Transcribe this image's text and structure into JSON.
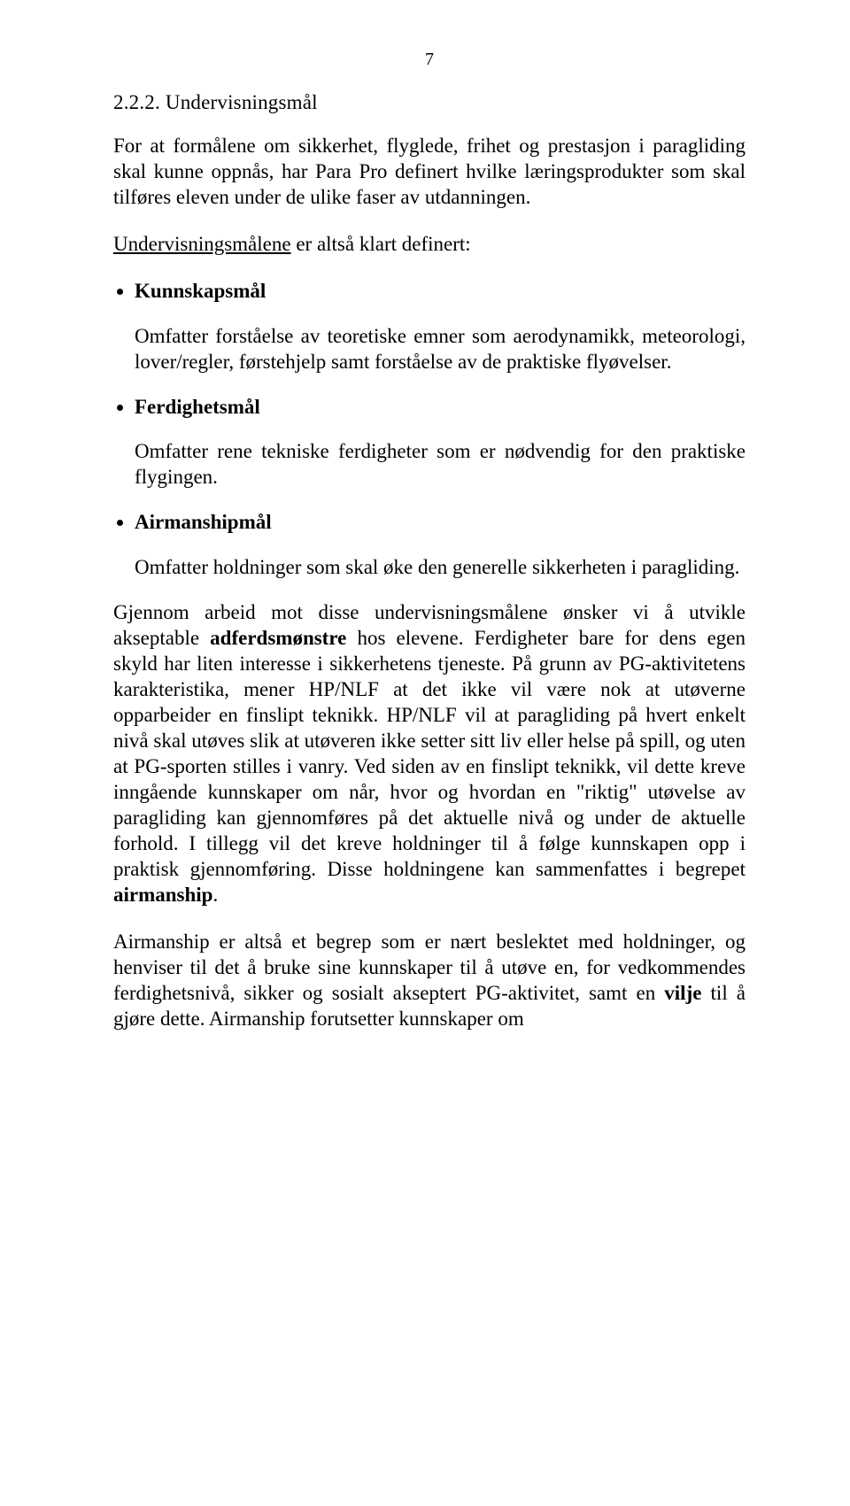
{
  "page_number": "7",
  "heading": "2.2.2. Undervisningsmål",
  "intro": "For at formålene om sikkerhet, flyglede, frihet og prestasjon i paragliding skal kunne oppnås, har Para Pro definert hvilke læringsprodukter som skal tilføres eleven under de ulike faser av utdanningen.",
  "defined_lead_underlined": "Undervisningsmålene",
  "defined_lead_rest": " er altså klart definert:",
  "goals": [
    {
      "title": "Kunnskapsmål",
      "desc": "Omfatter forståelse av teoretiske emner som aerodynamikk, meteorologi, lover/regler, førstehjelp samt forståelse av de praktiske flyøvelser."
    },
    {
      "title": "Ferdighetsmål",
      "desc": "Omfatter rene tekniske ferdigheter som er nødvendig for den praktiske flygingen."
    },
    {
      "title": "Airmanshipmål",
      "desc": "Omfatter holdninger som skal øke den generelle sikkerheten i paragliding."
    }
  ],
  "para2_pre": "Gjennom arbeid mot disse undervisningsmålene ønsker vi å utvikle akseptable ",
  "para2_bold1": "adferdsmønstre",
  "para2_mid": " hos elevene. Ferdigheter bare for dens egen skyld har liten interesse i sikkerhetens tjeneste. På grunn av PG-aktivitetens karakteristika, mener HP/NLF at det ikke vil være nok at utøverne opparbeider en finslipt teknikk. HP/NLF vil at paragliding på hvert enkelt nivå skal utøves slik at utøveren ikke setter sitt liv eller helse på spill, og uten at PG-sporten stilles i vanry. Ved siden av en finslipt teknikk, vil dette kreve inngående kunnskaper om når, hvor og hvordan en \"riktig\" utøvelse av paragliding kan gjennomføres på det aktuelle nivå og under de aktuelle forhold. I tillegg vil det kreve holdninger til å følge kunnskapen opp i praktisk gjennomføring. Disse holdningene kan sammenfattes i begrepet ",
  "para2_bold2": "airmanship",
  "para2_post": ".",
  "para3_pre": "Airmanship er altså et begrep som er nært beslektet med holdninger, og henviser til det å bruke sine kunnskaper til å utøve en, for vedkommendes ferdighetsnivå, sikker og sosialt akseptert PG-aktivitet, samt en ",
  "para3_bold": "vilje",
  "para3_post": " til å gjøre dette. Airmanship forutsetter kunnskaper om"
}
